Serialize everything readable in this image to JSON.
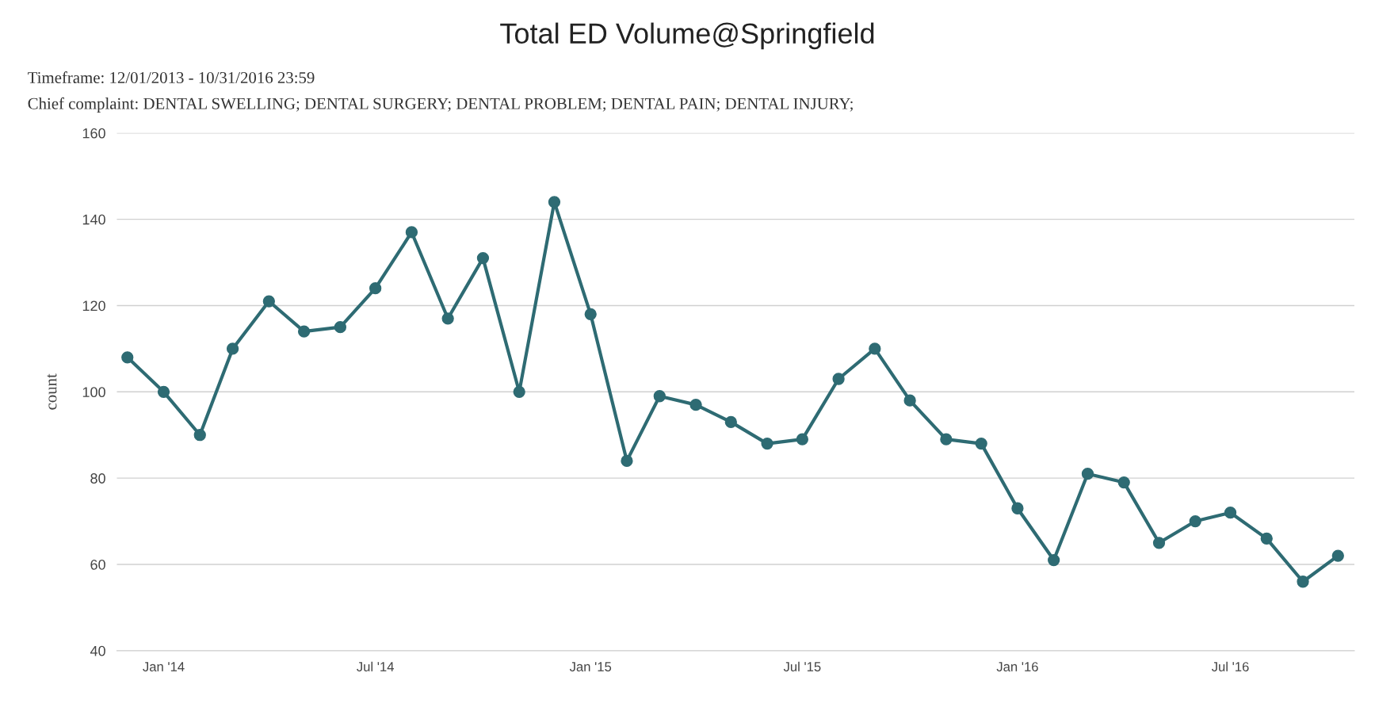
{
  "chart_data": {
    "type": "line",
    "title": "Total ED Volume@Springfield",
    "annotations": [
      "Timeframe: 12/01/2013 - 10/31/2016 23:59",
      "Chief complaint: DENTAL SWELLING; DENTAL SURGERY; DENTAL PROBLEM; DENTAL PAIN; DENTAL INJURY;"
    ],
    "ylabel": "count",
    "x": [
      "2013-12",
      "2014-01",
      "2014-02",
      "2014-03",
      "2014-04",
      "2014-05",
      "2014-06",
      "2014-07",
      "2014-08",
      "2014-09",
      "2014-10",
      "2014-11",
      "2014-12",
      "2015-01",
      "2015-02",
      "2015-03",
      "2015-04",
      "2015-05",
      "2015-06",
      "2015-07",
      "2015-08",
      "2015-09",
      "2015-10",
      "2015-11",
      "2015-12",
      "2016-01",
      "2016-02",
      "2016-03",
      "2016-04",
      "2016-05",
      "2016-06",
      "2016-07",
      "2016-08",
      "2016-09",
      "2016-10"
    ],
    "series": [
      {
        "color": "#2e6b73",
        "values": [
          108,
          100,
          90,
          110,
          121,
          114,
          115,
          124,
          137,
          117,
          131,
          100,
          144,
          118,
          84,
          99,
          97,
          93,
          88,
          89,
          103,
          110,
          98,
          89,
          88,
          73,
          61,
          81,
          79,
          65,
          70,
          72,
          66,
          56,
          62
        ]
      }
    ],
    "xlim": [
      "2013-11-22",
      "2016-10-15"
    ],
    "xticks": [
      {
        "value": "2014-01-01",
        "label": "Jan '14"
      },
      {
        "value": "2014-07-01",
        "label": "Jul '14"
      },
      {
        "value": "2015-01-01",
        "label": "Jan '15"
      },
      {
        "value": "2015-07-01",
        "label": "Jul '15"
      },
      {
        "value": "2016-01-01",
        "label": "Jan '16"
      },
      {
        "value": "2016-07-01",
        "label": "Jul '16"
      }
    ],
    "ylim": [
      40,
      160
    ],
    "yticks": [
      40,
      60,
      80,
      100,
      120,
      140,
      160
    ],
    "grid": "y",
    "marker": "circle",
    "line_style": "solid"
  }
}
